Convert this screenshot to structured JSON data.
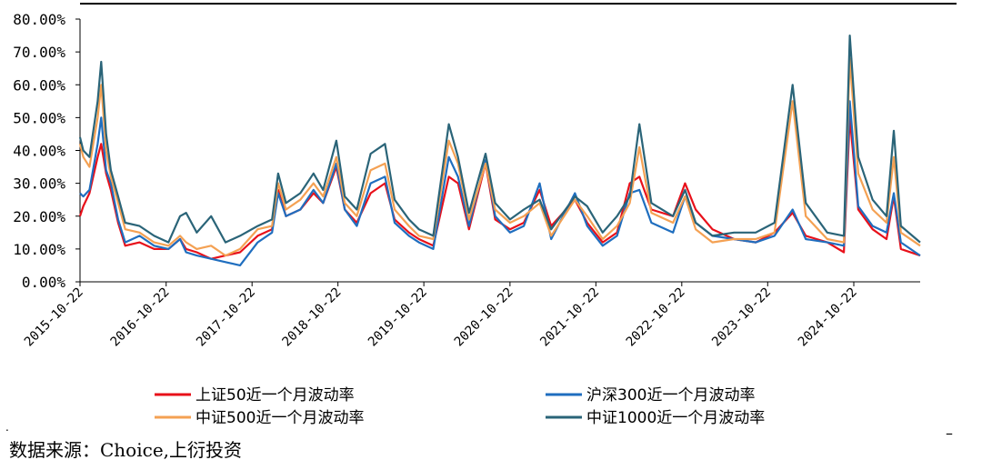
{
  "chart_data": {
    "type": "line",
    "ylim": [
      0,
      80
    ],
    "y_tick_labels": [
      "0.00%",
      "10.00%",
      "20.00%",
      "30.00%",
      "40.00%",
      "50.00%",
      "60.00%",
      "70.00%",
      "80.00%"
    ],
    "x_tick_labels": [
      "2015-10-22",
      "2016-10-22",
      "2017-10-22",
      "2018-10-22",
      "2019-10-22",
      "2020-10-22",
      "2021-10-22",
      "2022-10-22",
      "2023-10-22",
      "2024-10-22"
    ],
    "x_range": [
      "2015-10-22",
      "2025-07-31"
    ],
    "legend_position": "bottom",
    "grid": false,
    "series": [
      {
        "name": "上证50近一个月波动率",
        "color": "#e8101a",
        "points": [
          [
            "2015-10-22",
            20
          ],
          [
            "2015-11-05",
            23
          ],
          [
            "2015-12-01",
            27
          ],
          [
            "2016-01-05",
            38
          ],
          [
            "2016-01-20",
            42
          ],
          [
            "2016-02-10",
            33
          ],
          [
            "2016-03-01",
            28
          ],
          [
            "2016-04-01",
            18
          ],
          [
            "2016-05-01",
            11
          ],
          [
            "2016-07-01",
            12
          ],
          [
            "2016-09-01",
            10
          ],
          [
            "2016-11-01",
            10
          ],
          [
            "2016-12-20",
            13
          ],
          [
            "2017-01-15",
            10
          ],
          [
            "2017-03-01",
            9
          ],
          [
            "2017-05-01",
            7
          ],
          [
            "2017-07-01",
            8
          ],
          [
            "2017-09-01",
            9
          ],
          [
            "2017-11-15",
            14
          ],
          [
            "2018-01-15",
            16
          ],
          [
            "2018-02-10",
            28
          ],
          [
            "2018-03-15",
            20
          ],
          [
            "2018-05-15",
            22
          ],
          [
            "2018-07-10",
            27
          ],
          [
            "2018-08-20",
            24
          ],
          [
            "2018-10-15",
            35
          ],
          [
            "2018-11-20",
            22
          ],
          [
            "2019-01-10",
            18
          ],
          [
            "2019-03-10",
            27
          ],
          [
            "2019-05-10",
            30
          ],
          [
            "2019-06-20",
            19
          ],
          [
            "2019-08-20",
            15
          ],
          [
            "2019-10-01",
            13
          ],
          [
            "2019-12-01",
            11
          ],
          [
            "2020-02-05",
            32
          ],
          [
            "2020-03-15",
            30
          ],
          [
            "2020-05-01",
            16
          ],
          [
            "2020-07-10",
            36
          ],
          [
            "2020-08-20",
            19
          ],
          [
            "2020-10-22",
            16
          ],
          [
            "2020-12-20",
            18
          ],
          [
            "2021-02-25",
            28
          ],
          [
            "2021-04-15",
            17
          ],
          [
            "2021-07-25",
            25
          ],
          [
            "2021-09-15",
            18
          ],
          [
            "2021-11-20",
            12
          ],
          [
            "2022-01-20",
            15
          ],
          [
            "2022-03-15",
            30
          ],
          [
            "2022-04-25",
            32
          ],
          [
            "2022-06-15",
            22
          ],
          [
            "2022-09-15",
            20
          ],
          [
            "2022-11-05",
            30
          ],
          [
            "2022-12-20",
            22
          ],
          [
            "2023-03-01",
            16
          ],
          [
            "2023-06-01",
            13
          ],
          [
            "2023-09-01",
            12
          ],
          [
            "2023-11-20",
            15
          ],
          [
            "2024-02-05",
            21
          ],
          [
            "2024-04-01",
            14
          ],
          [
            "2024-07-01",
            12
          ],
          [
            "2024-09-10",
            9
          ],
          [
            "2024-10-05",
            50
          ],
          [
            "2024-11-10",
            22
          ],
          [
            "2025-01-10",
            16
          ],
          [
            "2025-03-10",
            13
          ],
          [
            "2025-04-10",
            26
          ],
          [
            "2025-05-10",
            10
          ],
          [
            "2025-07-31",
            8
          ]
        ]
      },
      {
        "name": "沪深300近一个月波动率",
        "color": "#1f6ebf",
        "points": [
          [
            "2015-10-22",
            27
          ],
          [
            "2015-11-05",
            26
          ],
          [
            "2015-12-01",
            28
          ],
          [
            "2016-01-05",
            42
          ],
          [
            "2016-01-20",
            50
          ],
          [
            "2016-02-10",
            34
          ],
          [
            "2016-03-01",
            30
          ],
          [
            "2016-04-01",
            19
          ],
          [
            "2016-05-01",
            12
          ],
          [
            "2016-07-01",
            14
          ],
          [
            "2016-09-01",
            11
          ],
          [
            "2016-11-01",
            10
          ],
          [
            "2016-12-20",
            13
          ],
          [
            "2017-01-15",
            9
          ],
          [
            "2017-03-01",
            8
          ],
          [
            "2017-05-01",
            7
          ],
          [
            "2017-07-01",
            6
          ],
          [
            "2017-09-01",
            5
          ],
          [
            "2017-11-15",
            12
          ],
          [
            "2018-01-15",
            15
          ],
          [
            "2018-02-10",
            27
          ],
          [
            "2018-03-15",
            20
          ],
          [
            "2018-05-15",
            22
          ],
          [
            "2018-07-10",
            28
          ],
          [
            "2018-08-20",
            24
          ],
          [
            "2018-10-15",
            36
          ],
          [
            "2018-11-20",
            22
          ],
          [
            "2019-01-10",
            17
          ],
          [
            "2019-03-10",
            30
          ],
          [
            "2019-05-10",
            32
          ],
          [
            "2019-06-20",
            18
          ],
          [
            "2019-08-20",
            14
          ],
          [
            "2019-10-01",
            12
          ],
          [
            "2019-12-01",
            10
          ],
          [
            "2020-02-05",
            38
          ],
          [
            "2020-03-15",
            32
          ],
          [
            "2020-05-01",
            17
          ],
          [
            "2020-07-10",
            37
          ],
          [
            "2020-08-20",
            20
          ],
          [
            "2020-10-22",
            15
          ],
          [
            "2020-12-20",
            17
          ],
          [
            "2021-02-25",
            30
          ],
          [
            "2021-04-15",
            13
          ],
          [
            "2021-07-25",
            27
          ],
          [
            "2021-09-15",
            17
          ],
          [
            "2021-11-20",
            11
          ],
          [
            "2022-01-20",
            14
          ],
          [
            "2022-03-15",
            27
          ],
          [
            "2022-04-25",
            28
          ],
          [
            "2022-06-15",
            18
          ],
          [
            "2022-09-15",
            15
          ],
          [
            "2022-11-05",
            26
          ],
          [
            "2022-12-20",
            18
          ],
          [
            "2023-03-01",
            14
          ],
          [
            "2023-06-01",
            13
          ],
          [
            "2023-09-01",
            12
          ],
          [
            "2023-11-20",
            14
          ],
          [
            "2024-02-05",
            22
          ],
          [
            "2024-04-01",
            13
          ],
          [
            "2024-07-01",
            12
          ],
          [
            "2024-09-10",
            11
          ],
          [
            "2024-10-05",
            55
          ],
          [
            "2024-11-10",
            23
          ],
          [
            "2025-01-10",
            17
          ],
          [
            "2025-03-10",
            15
          ],
          [
            "2025-04-10",
            27
          ],
          [
            "2025-05-10",
            12
          ],
          [
            "2025-07-31",
            8
          ]
        ]
      },
      {
        "name": "中证500近一个月波动率",
        "color": "#f4a153",
        "points": [
          [
            "2015-10-22",
            42
          ],
          [
            "2015-11-05",
            38
          ],
          [
            "2015-12-01",
            35
          ],
          [
            "2016-01-05",
            50
          ],
          [
            "2016-01-20",
            60
          ],
          [
            "2016-02-10",
            40
          ],
          [
            "2016-03-01",
            32
          ],
          [
            "2016-04-01",
            24
          ],
          [
            "2016-05-01",
            16
          ],
          [
            "2016-07-01",
            15
          ],
          [
            "2016-09-01",
            12
          ],
          [
            "2016-11-01",
            11
          ],
          [
            "2016-12-20",
            14
          ],
          [
            "2017-01-15",
            12
          ],
          [
            "2017-03-01",
            10
          ],
          [
            "2017-05-01",
            11
          ],
          [
            "2017-07-01",
            8
          ],
          [
            "2017-09-01",
            10
          ],
          [
            "2017-11-15",
            16
          ],
          [
            "2018-01-15",
            17
          ],
          [
            "2018-02-10",
            30
          ],
          [
            "2018-03-15",
            22
          ],
          [
            "2018-05-15",
            25
          ],
          [
            "2018-07-10",
            30
          ],
          [
            "2018-08-20",
            26
          ],
          [
            "2018-10-15",
            38
          ],
          [
            "2018-11-20",
            24
          ],
          [
            "2019-01-10",
            20
          ],
          [
            "2019-03-10",
            34
          ],
          [
            "2019-05-10",
            36
          ],
          [
            "2019-06-20",
            22
          ],
          [
            "2019-08-20",
            17
          ],
          [
            "2019-10-01",
            14
          ],
          [
            "2019-12-01",
            13
          ],
          [
            "2020-02-05",
            43
          ],
          [
            "2020-03-15",
            36
          ],
          [
            "2020-05-01",
            19
          ],
          [
            "2020-07-10",
            36
          ],
          [
            "2020-08-20",
            22
          ],
          [
            "2020-10-22",
            18
          ],
          [
            "2020-12-20",
            20
          ],
          [
            "2021-02-25",
            24
          ],
          [
            "2021-04-15",
            14
          ],
          [
            "2021-07-25",
            25
          ],
          [
            "2021-09-15",
            20
          ],
          [
            "2021-11-20",
            13
          ],
          [
            "2022-01-20",
            17
          ],
          [
            "2022-03-15",
            24
          ],
          [
            "2022-04-25",
            41
          ],
          [
            "2022-06-15",
            21
          ],
          [
            "2022-09-15",
            18
          ],
          [
            "2022-11-05",
            26
          ],
          [
            "2022-12-20",
            16
          ],
          [
            "2023-03-01",
            12
          ],
          [
            "2023-06-01",
            13
          ],
          [
            "2023-09-01",
            13
          ],
          [
            "2023-11-20",
            15
          ],
          [
            "2024-02-05",
            55
          ],
          [
            "2024-04-01",
            20
          ],
          [
            "2024-07-01",
            13
          ],
          [
            "2024-09-10",
            12
          ],
          [
            "2024-10-05",
            68
          ],
          [
            "2024-11-10",
            33
          ],
          [
            "2025-01-10",
            22
          ],
          [
            "2025-03-10",
            18
          ],
          [
            "2025-04-10",
            38
          ],
          [
            "2025-05-10",
            15
          ],
          [
            "2025-07-31",
            11
          ]
        ]
      },
      {
        "name": "中证1000近一个月波动率",
        "color": "#2a6478",
        "points": [
          [
            "2015-10-22",
            44
          ],
          [
            "2015-11-05",
            40
          ],
          [
            "2015-12-01",
            38
          ],
          [
            "2016-01-05",
            55
          ],
          [
            "2016-01-20",
            67
          ],
          [
            "2016-02-10",
            45
          ],
          [
            "2016-03-01",
            34
          ],
          [
            "2016-04-01",
            26
          ],
          [
            "2016-05-01",
            18
          ],
          [
            "2016-07-01",
            17
          ],
          [
            "2016-09-01",
            14
          ],
          [
            "2016-11-01",
            12
          ],
          [
            "2016-12-20",
            20
          ],
          [
            "2017-01-15",
            21
          ],
          [
            "2017-03-01",
            15
          ],
          [
            "2017-05-01",
            20
          ],
          [
            "2017-07-01",
            12
          ],
          [
            "2017-09-01",
            14
          ],
          [
            "2017-11-15",
            17
          ],
          [
            "2018-01-15",
            19
          ],
          [
            "2018-02-10",
            33
          ],
          [
            "2018-03-15",
            24
          ],
          [
            "2018-05-15",
            27
          ],
          [
            "2018-07-10",
            33
          ],
          [
            "2018-08-20",
            28
          ],
          [
            "2018-10-15",
            43
          ],
          [
            "2018-11-20",
            26
          ],
          [
            "2019-01-10",
            22
          ],
          [
            "2019-03-10",
            39
          ],
          [
            "2019-05-10",
            42
          ],
          [
            "2019-06-20",
            25
          ],
          [
            "2019-08-20",
            19
          ],
          [
            "2019-10-01",
            16
          ],
          [
            "2019-12-01",
            14
          ],
          [
            "2020-02-05",
            48
          ],
          [
            "2020-03-15",
            38
          ],
          [
            "2020-05-01",
            21
          ],
          [
            "2020-07-10",
            39
          ],
          [
            "2020-08-20",
            24
          ],
          [
            "2020-10-22",
            19
          ],
          [
            "2020-12-20",
            22
          ],
          [
            "2021-02-25",
            25
          ],
          [
            "2021-04-15",
            16
          ],
          [
            "2021-07-25",
            26
          ],
          [
            "2021-09-15",
            23
          ],
          [
            "2021-11-20",
            15
          ],
          [
            "2022-01-20",
            20
          ],
          [
            "2022-03-15",
            26
          ],
          [
            "2022-04-25",
            48
          ],
          [
            "2022-06-15",
            24
          ],
          [
            "2022-09-15",
            20
          ],
          [
            "2022-11-05",
            28
          ],
          [
            "2022-12-20",
            18
          ],
          [
            "2023-03-01",
            14
          ],
          [
            "2023-06-01",
            15
          ],
          [
            "2023-09-01",
            15
          ],
          [
            "2023-11-20",
            18
          ],
          [
            "2024-02-05",
            60
          ],
          [
            "2024-04-01",
            24
          ],
          [
            "2024-07-01",
            15
          ],
          [
            "2024-09-10",
            14
          ],
          [
            "2024-10-05",
            75
          ],
          [
            "2024-11-10",
            38
          ],
          [
            "2025-01-10",
            25
          ],
          [
            "2025-03-10",
            20
          ],
          [
            "2025-04-10",
            46
          ],
          [
            "2025-05-10",
            17
          ],
          [
            "2025-07-31",
            12
          ]
        ]
      }
    ]
  },
  "source_note": "数据来源：Choice,上衍投资"
}
